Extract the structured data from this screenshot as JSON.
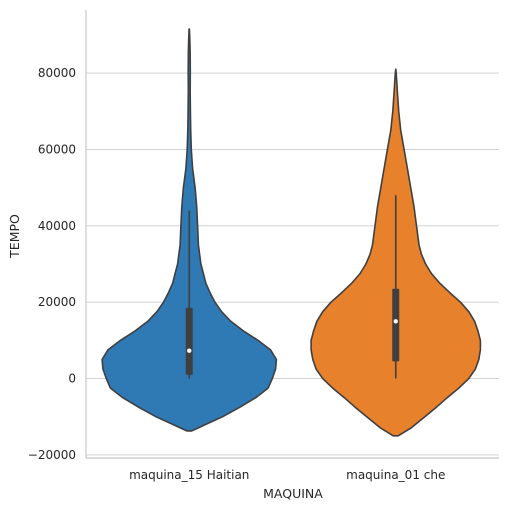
{
  "chart_data": {
    "type": "violin",
    "xlabel": "MAQUINA",
    "ylabel": "TEMPO",
    "ylim": [
      -20800,
      96500
    ],
    "yticks": [
      -20000,
      0,
      20000,
      40000,
      60000,
      80000
    ],
    "ytick_labels": [
      "−20000",
      "0",
      "20000",
      "40000",
      "60000",
      "80000"
    ],
    "grid": "horizontal",
    "categories": [
      "maquina_15 Haitian",
      "maquina_01 che"
    ],
    "series": [
      {
        "category": "maquina_15 Haitian",
        "color": "#2f7ab5",
        "density": [
          [
            -13700,
            0.03
          ],
          [
            -12000,
            0.2
          ],
          [
            -10000,
            0.4
          ],
          [
            -7500,
            0.61
          ],
          [
            -5000,
            0.8
          ],
          [
            -2500,
            0.95
          ],
          [
            0,
            1.0
          ],
          [
            2500,
            1.04
          ],
          [
            5000,
            1.05
          ],
          [
            7500,
            0.98
          ],
          [
            10000,
            0.83
          ],
          [
            12500,
            0.65
          ],
          [
            15000,
            0.5
          ],
          [
            17500,
            0.39
          ],
          [
            20000,
            0.31
          ],
          [
            22500,
            0.25
          ],
          [
            25000,
            0.2
          ],
          [
            27500,
            0.17
          ],
          [
            30000,
            0.14
          ],
          [
            35000,
            0.11
          ],
          [
            40000,
            0.1
          ],
          [
            45000,
            0.09
          ],
          [
            50000,
            0.07
          ],
          [
            55000,
            0.04
          ],
          [
            60000,
            0.025
          ],
          [
            65000,
            0.018
          ],
          [
            70000,
            0.014
          ],
          [
            75000,
            0.012
          ],
          [
            80000,
            0.013
          ],
          [
            85000,
            0.011
          ],
          [
            89000,
            0.007
          ],
          [
            91500,
            0.002
          ]
        ],
        "whisker": [
          0,
          44000
        ],
        "q1": 1000,
        "q3": 18500,
        "median": 7300
      },
      {
        "category": "maquina_01 che",
        "color": "#e8812c",
        "density": [
          [
            -15000,
            0.03
          ],
          [
            -13000,
            0.18
          ],
          [
            -10000,
            0.35
          ],
          [
            -7500,
            0.49
          ],
          [
            -5000,
            0.62
          ],
          [
            -2500,
            0.76
          ],
          [
            0,
            0.88
          ],
          [
            2500,
            0.96
          ],
          [
            5000,
            1.0
          ],
          [
            7500,
            1.02
          ],
          [
            10000,
            1.02
          ],
          [
            12500,
            0.99
          ],
          [
            15000,
            0.95
          ],
          [
            17500,
            0.88
          ],
          [
            20000,
            0.78
          ],
          [
            22500,
            0.65
          ],
          [
            25000,
            0.53
          ],
          [
            27500,
            0.43
          ],
          [
            30000,
            0.36
          ],
          [
            32500,
            0.31
          ],
          [
            35000,
            0.28
          ],
          [
            40000,
            0.25
          ],
          [
            45000,
            0.22
          ],
          [
            50000,
            0.18
          ],
          [
            55000,
            0.14
          ],
          [
            60000,
            0.1
          ],
          [
            65000,
            0.06
          ],
          [
            70000,
            0.035
          ],
          [
            75000,
            0.02
          ],
          [
            78000,
            0.012
          ],
          [
            80000,
            0.005
          ],
          [
            81000,
            0.0
          ]
        ],
        "whisker": [
          0,
          48000
        ],
        "q1": 4500,
        "q3": 23500,
        "median": 15000
      }
    ]
  }
}
